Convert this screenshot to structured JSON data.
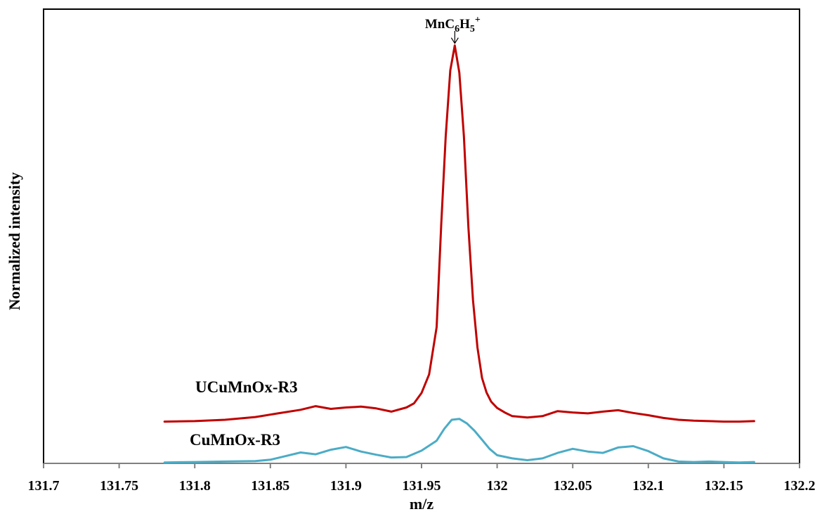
{
  "chart_data": {
    "type": "line",
    "xlabel": "m/z",
    "ylabel": "Normalized intensity",
    "xlim": [
      131.7,
      132.2
    ],
    "ylim": [
      0,
      100
    ],
    "grid": false,
    "x_ticks": [
      "131.7",
      "131.75",
      "131.8",
      "131.85",
      "131.9",
      "131.95",
      "132",
      "132.05",
      "132.1",
      "132.15",
      "132.2"
    ],
    "annotation": {
      "base": "MnC",
      "sub1": "6",
      "mid": "H",
      "sub2": "5",
      "sup": "+",
      "x": 131.972
    },
    "series": [
      {
        "name": "UCuMnOx-R3",
        "color": "#C00000",
        "x": [
          131.78,
          131.8,
          131.82,
          131.84,
          131.855,
          131.87,
          131.88,
          131.89,
          131.9,
          131.91,
          131.92,
          131.93,
          131.94,
          131.945,
          131.95,
          131.955,
          131.96,
          131.963,
          131.966,
          131.969,
          131.972,
          131.975,
          131.978,
          131.981,
          131.984,
          131.987,
          131.99,
          131.993,
          131.996,
          132.0,
          132.005,
          132.01,
          132.02,
          132.03,
          132.04,
          132.05,
          132.06,
          132.07,
          132.08,
          132.09,
          132.1,
          132.11,
          132.12,
          132.13,
          132.14,
          132.15,
          132.16,
          132.17
        ],
        "values": [
          9.2,
          9.3,
          9.6,
          10.2,
          11.0,
          11.8,
          12.6,
          12.0,
          12.3,
          12.5,
          12.1,
          11.4,
          12.3,
          13.2,
          15.5,
          19.6,
          30.0,
          52.5,
          72.0,
          86.5,
          92.0,
          86.0,
          72.0,
          52.0,
          36.0,
          25.5,
          18.8,
          15.6,
          13.6,
          12.2,
          11.2,
          10.4,
          10.1,
          10.4,
          11.5,
          11.2,
          11.0,
          11.4,
          11.7,
          11.1,
          10.6,
          10.0,
          9.6,
          9.4,
          9.3,
          9.2,
          9.2,
          9.3
        ]
      },
      {
        "name": "CuMnOx-R3",
        "color": "#4BACC6",
        "x": [
          131.78,
          131.8,
          131.82,
          131.84,
          131.85,
          131.86,
          131.87,
          131.88,
          131.89,
          131.9,
          131.91,
          131.92,
          131.93,
          131.94,
          131.95,
          131.96,
          131.965,
          131.97,
          131.975,
          131.98,
          131.985,
          131.99,
          131.995,
          132.0,
          132.01,
          132.02,
          132.03,
          132.04,
          132.05,
          132.06,
          132.07,
          132.08,
          132.09,
          132.1,
          132.11,
          132.12,
          132.13,
          132.14,
          132.15,
          132.16,
          132.17
        ],
        "values": [
          0.2,
          0.3,
          0.4,
          0.5,
          0.8,
          1.6,
          2.4,
          2.0,
          3.0,
          3.6,
          2.6,
          1.9,
          1.3,
          1.4,
          2.8,
          5.0,
          7.6,
          9.6,
          9.8,
          8.8,
          7.2,
          5.2,
          3.2,
          1.8,
          1.1,
          0.7,
          1.1,
          2.3,
          3.2,
          2.6,
          2.3,
          3.5,
          3.8,
          2.7,
          1.1,
          0.4,
          0.3,
          0.4,
          0.3,
          0.2,
          0.3
        ]
      }
    ]
  }
}
